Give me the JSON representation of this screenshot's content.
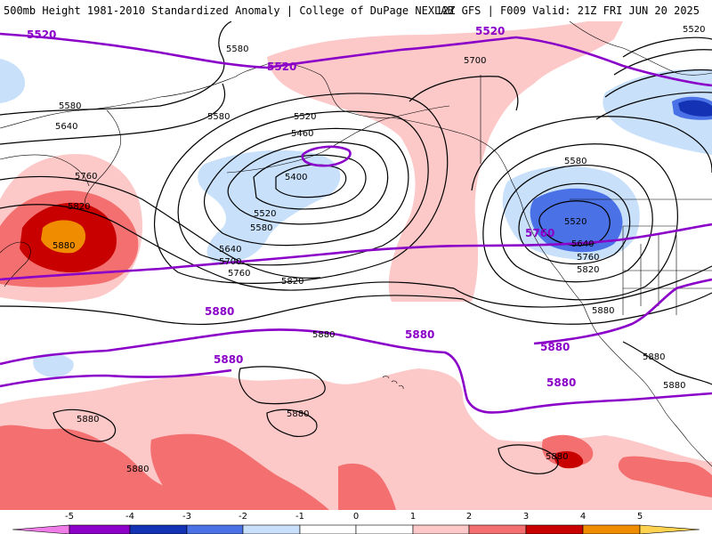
{
  "header": {
    "title_left": "500mb Height 1981-2010 Standardized Anomaly | College of DuPage NEXLAB",
    "title_right": "12Z GFS | F009 Valid: 21Z FRI JUN 20 2025"
  },
  "colors": {
    "anom_neg5": "#f07ce8",
    "anom_neg4": "#8c00c8",
    "anom_neg3": "#1432b4",
    "anom_neg2": "#4a72e6",
    "anom_neg1": "#c8e0fa",
    "anom_0": "#ffffff",
    "anom_pos1": "#fcc8c8",
    "anom_pos2": "#f47070",
    "anom_pos3": "#c80000",
    "anom_pos4": "#f08c00",
    "anom_pos5": "#ffd250",
    "bold_contour": "#8a00c8",
    "contour": "#000000",
    "coast": "#000000"
  },
  "contour_labels": {
    "thin": [
      "5580",
      "5700",
      "5520",
      "5580",
      "5580",
      "5640",
      "5460",
      "5400",
      "5520",
      "5580",
      "5640",
      "5700",
      "5760",
      "5820",
      "5760",
      "5820",
      "5880",
      "5880",
      "5880",
      "5880",
      "5880",
      "5880",
      "5520",
      "5580",
      "5520",
      "5640",
      "5760",
      "5820",
      "5880",
      "5880",
      "5880"
    ],
    "bold": [
      "5520",
      "5520",
      "5520",
      "5760",
      "5880",
      "5880",
      "5880",
      "5880",
      "5880"
    ]
  },
  "colorbar": {
    "ticks": [
      "-5",
      "-4",
      "-3",
      "-2",
      "-1",
      "0",
      "1",
      "2",
      "3",
      "4",
      "5"
    ]
  }
}
